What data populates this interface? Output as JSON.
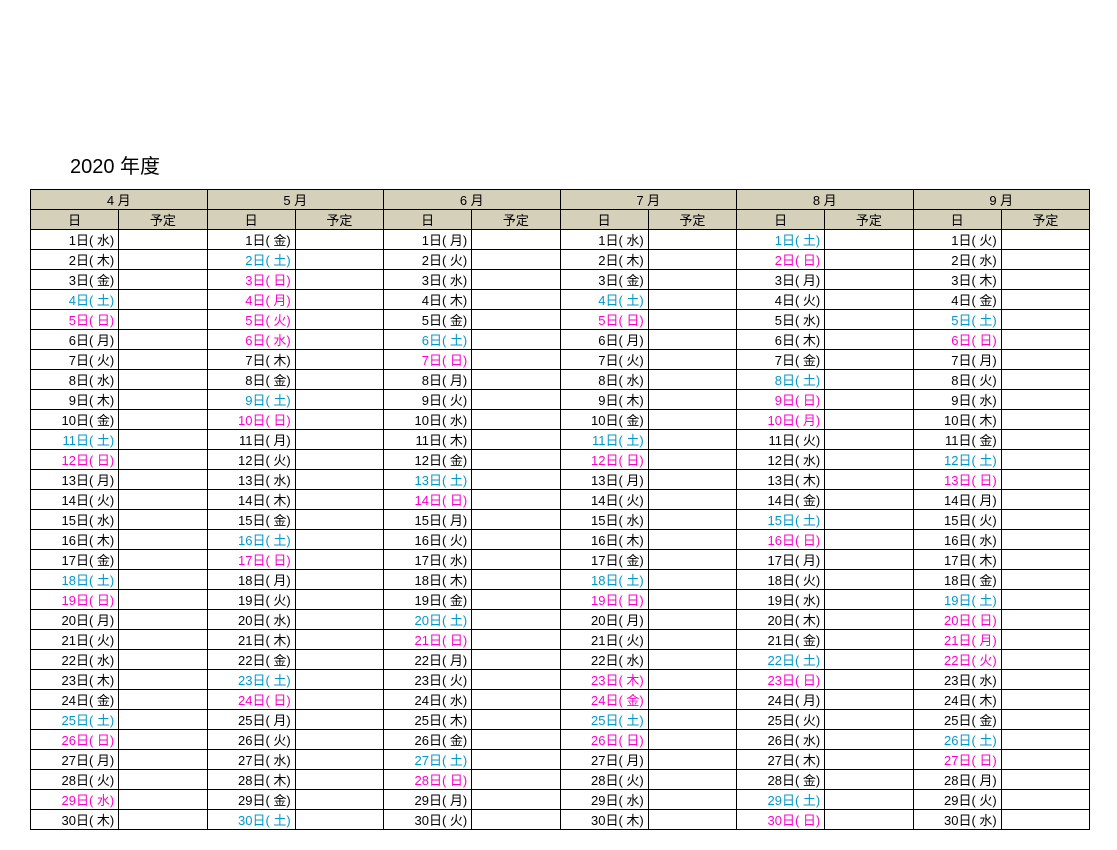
{
  "title": "2020  年度",
  "columns": {
    "date_label": "日",
    "schedule_label": "予定"
  },
  "colors": {
    "weekday": "#000000",
    "saturday": "#0099cc",
    "sunday_holiday": "#ff00cc",
    "header_bg": "#d4d0b9"
  },
  "months": [
    {
      "label": "4 月",
      "days": [
        {
          "d": 1,
          "wd": "水",
          "t": "b"
        },
        {
          "d": 2,
          "wd": "木",
          "t": "b"
        },
        {
          "d": 3,
          "wd": "金",
          "t": "b"
        },
        {
          "d": 4,
          "wd": "土",
          "t": "s"
        },
        {
          "d": 5,
          "wd": "日",
          "t": "h"
        },
        {
          "d": 6,
          "wd": "月",
          "t": "b"
        },
        {
          "d": 7,
          "wd": "火",
          "t": "b"
        },
        {
          "d": 8,
          "wd": "水",
          "t": "b"
        },
        {
          "d": 9,
          "wd": "木",
          "t": "b"
        },
        {
          "d": 10,
          "wd": "金",
          "t": "b"
        },
        {
          "d": 11,
          "wd": "土",
          "t": "s"
        },
        {
          "d": 12,
          "wd": "日",
          "t": "h"
        },
        {
          "d": 13,
          "wd": "月",
          "t": "b"
        },
        {
          "d": 14,
          "wd": "火",
          "t": "b"
        },
        {
          "d": 15,
          "wd": "水",
          "t": "b"
        },
        {
          "d": 16,
          "wd": "木",
          "t": "b"
        },
        {
          "d": 17,
          "wd": "金",
          "t": "b"
        },
        {
          "d": 18,
          "wd": "土",
          "t": "s"
        },
        {
          "d": 19,
          "wd": "日",
          "t": "h"
        },
        {
          "d": 20,
          "wd": "月",
          "t": "b"
        },
        {
          "d": 21,
          "wd": "火",
          "t": "b"
        },
        {
          "d": 22,
          "wd": "水",
          "t": "b"
        },
        {
          "d": 23,
          "wd": "木",
          "t": "b"
        },
        {
          "d": 24,
          "wd": "金",
          "t": "b"
        },
        {
          "d": 25,
          "wd": "土",
          "t": "s"
        },
        {
          "d": 26,
          "wd": "日",
          "t": "h"
        },
        {
          "d": 27,
          "wd": "月",
          "t": "b"
        },
        {
          "d": 28,
          "wd": "火",
          "t": "b"
        },
        {
          "d": 29,
          "wd": "水",
          "t": "h"
        },
        {
          "d": 30,
          "wd": "木",
          "t": "b"
        }
      ]
    },
    {
      "label": "5 月",
      "days": [
        {
          "d": 1,
          "wd": "金",
          "t": "b"
        },
        {
          "d": 2,
          "wd": "土",
          "t": "s"
        },
        {
          "d": 3,
          "wd": "日",
          "t": "h"
        },
        {
          "d": 4,
          "wd": "月",
          "t": "h"
        },
        {
          "d": 5,
          "wd": "火",
          "t": "h"
        },
        {
          "d": 6,
          "wd": "水",
          "t": "h"
        },
        {
          "d": 7,
          "wd": "木",
          "t": "b"
        },
        {
          "d": 8,
          "wd": "金",
          "t": "b"
        },
        {
          "d": 9,
          "wd": "土",
          "t": "s"
        },
        {
          "d": 10,
          "wd": "日",
          "t": "h"
        },
        {
          "d": 11,
          "wd": "月",
          "t": "b"
        },
        {
          "d": 12,
          "wd": "火",
          "t": "b"
        },
        {
          "d": 13,
          "wd": "水",
          "t": "b"
        },
        {
          "d": 14,
          "wd": "木",
          "t": "b"
        },
        {
          "d": 15,
          "wd": "金",
          "t": "b"
        },
        {
          "d": 16,
          "wd": "土",
          "t": "s"
        },
        {
          "d": 17,
          "wd": "日",
          "t": "h"
        },
        {
          "d": 18,
          "wd": "月",
          "t": "b"
        },
        {
          "d": 19,
          "wd": "火",
          "t": "b"
        },
        {
          "d": 20,
          "wd": "水",
          "t": "b"
        },
        {
          "d": 21,
          "wd": "木",
          "t": "b"
        },
        {
          "d": 22,
          "wd": "金",
          "t": "b"
        },
        {
          "d": 23,
          "wd": "土",
          "t": "s"
        },
        {
          "d": 24,
          "wd": "日",
          "t": "h"
        },
        {
          "d": 25,
          "wd": "月",
          "t": "b"
        },
        {
          "d": 26,
          "wd": "火",
          "t": "b"
        },
        {
          "d": 27,
          "wd": "水",
          "t": "b"
        },
        {
          "d": 28,
          "wd": "木",
          "t": "b"
        },
        {
          "d": 29,
          "wd": "金",
          "t": "b"
        },
        {
          "d": 30,
          "wd": "土",
          "t": "s"
        }
      ]
    },
    {
      "label": "6 月",
      "days": [
        {
          "d": 1,
          "wd": "月",
          "t": "b"
        },
        {
          "d": 2,
          "wd": "火",
          "t": "b"
        },
        {
          "d": 3,
          "wd": "水",
          "t": "b"
        },
        {
          "d": 4,
          "wd": "木",
          "t": "b"
        },
        {
          "d": 5,
          "wd": "金",
          "t": "b"
        },
        {
          "d": 6,
          "wd": "土",
          "t": "s"
        },
        {
          "d": 7,
          "wd": "日",
          "t": "h"
        },
        {
          "d": 8,
          "wd": "月",
          "t": "b"
        },
        {
          "d": 9,
          "wd": "火",
          "t": "b"
        },
        {
          "d": 10,
          "wd": "水",
          "t": "b"
        },
        {
          "d": 11,
          "wd": "木",
          "t": "b"
        },
        {
          "d": 12,
          "wd": "金",
          "t": "b"
        },
        {
          "d": 13,
          "wd": "土",
          "t": "s"
        },
        {
          "d": 14,
          "wd": "日",
          "t": "h"
        },
        {
          "d": 15,
          "wd": "月",
          "t": "b"
        },
        {
          "d": 16,
          "wd": "火",
          "t": "b"
        },
        {
          "d": 17,
          "wd": "水",
          "t": "b"
        },
        {
          "d": 18,
          "wd": "木",
          "t": "b"
        },
        {
          "d": 19,
          "wd": "金",
          "t": "b"
        },
        {
          "d": 20,
          "wd": "土",
          "t": "s"
        },
        {
          "d": 21,
          "wd": "日",
          "t": "h"
        },
        {
          "d": 22,
          "wd": "月",
          "t": "b"
        },
        {
          "d": 23,
          "wd": "火",
          "t": "b"
        },
        {
          "d": 24,
          "wd": "水",
          "t": "b"
        },
        {
          "d": 25,
          "wd": "木",
          "t": "b"
        },
        {
          "d": 26,
          "wd": "金",
          "t": "b"
        },
        {
          "d": 27,
          "wd": "土",
          "t": "s"
        },
        {
          "d": 28,
          "wd": "日",
          "t": "h"
        },
        {
          "d": 29,
          "wd": "月",
          "t": "b"
        },
        {
          "d": 30,
          "wd": "火",
          "t": "b"
        }
      ]
    },
    {
      "label": "7 月",
      "days": [
        {
          "d": 1,
          "wd": "水",
          "t": "b"
        },
        {
          "d": 2,
          "wd": "木",
          "t": "b"
        },
        {
          "d": 3,
          "wd": "金",
          "t": "b"
        },
        {
          "d": 4,
          "wd": "土",
          "t": "s"
        },
        {
          "d": 5,
          "wd": "日",
          "t": "h"
        },
        {
          "d": 6,
          "wd": "月",
          "t": "b"
        },
        {
          "d": 7,
          "wd": "火",
          "t": "b"
        },
        {
          "d": 8,
          "wd": "水",
          "t": "b"
        },
        {
          "d": 9,
          "wd": "木",
          "t": "b"
        },
        {
          "d": 10,
          "wd": "金",
          "t": "b"
        },
        {
          "d": 11,
          "wd": "土",
          "t": "s"
        },
        {
          "d": 12,
          "wd": "日",
          "t": "h"
        },
        {
          "d": 13,
          "wd": "月",
          "t": "b"
        },
        {
          "d": 14,
          "wd": "火",
          "t": "b"
        },
        {
          "d": 15,
          "wd": "水",
          "t": "b"
        },
        {
          "d": 16,
          "wd": "木",
          "t": "b"
        },
        {
          "d": 17,
          "wd": "金",
          "t": "b"
        },
        {
          "d": 18,
          "wd": "土",
          "t": "s"
        },
        {
          "d": 19,
          "wd": "日",
          "t": "h"
        },
        {
          "d": 20,
          "wd": "月",
          "t": "b"
        },
        {
          "d": 21,
          "wd": "火",
          "t": "b"
        },
        {
          "d": 22,
          "wd": "水",
          "t": "b"
        },
        {
          "d": 23,
          "wd": "木",
          "t": "h"
        },
        {
          "d": 24,
          "wd": "金",
          "t": "h"
        },
        {
          "d": 25,
          "wd": "土",
          "t": "s"
        },
        {
          "d": 26,
          "wd": "日",
          "t": "h"
        },
        {
          "d": 27,
          "wd": "月",
          "t": "b"
        },
        {
          "d": 28,
          "wd": "火",
          "t": "b"
        },
        {
          "d": 29,
          "wd": "水",
          "t": "b"
        },
        {
          "d": 30,
          "wd": "木",
          "t": "b"
        }
      ]
    },
    {
      "label": "8 月",
      "days": [
        {
          "d": 1,
          "wd": "土",
          "t": "s"
        },
        {
          "d": 2,
          "wd": "日",
          "t": "h"
        },
        {
          "d": 3,
          "wd": "月",
          "t": "b"
        },
        {
          "d": 4,
          "wd": "火",
          "t": "b"
        },
        {
          "d": 5,
          "wd": "水",
          "t": "b"
        },
        {
          "d": 6,
          "wd": "木",
          "t": "b"
        },
        {
          "d": 7,
          "wd": "金",
          "t": "b"
        },
        {
          "d": 8,
          "wd": "土",
          "t": "s"
        },
        {
          "d": 9,
          "wd": "日",
          "t": "h"
        },
        {
          "d": 10,
          "wd": "月",
          "t": "h"
        },
        {
          "d": 11,
          "wd": "火",
          "t": "b"
        },
        {
          "d": 12,
          "wd": "水",
          "t": "b"
        },
        {
          "d": 13,
          "wd": "木",
          "t": "b"
        },
        {
          "d": 14,
          "wd": "金",
          "t": "b"
        },
        {
          "d": 15,
          "wd": "土",
          "t": "s"
        },
        {
          "d": 16,
          "wd": "日",
          "t": "h"
        },
        {
          "d": 17,
          "wd": "月",
          "t": "b"
        },
        {
          "d": 18,
          "wd": "火",
          "t": "b"
        },
        {
          "d": 19,
          "wd": "水",
          "t": "b"
        },
        {
          "d": 20,
          "wd": "木",
          "t": "b"
        },
        {
          "d": 21,
          "wd": "金",
          "t": "b"
        },
        {
          "d": 22,
          "wd": "土",
          "t": "s"
        },
        {
          "d": 23,
          "wd": "日",
          "t": "h"
        },
        {
          "d": 24,
          "wd": "月",
          "t": "b"
        },
        {
          "d": 25,
          "wd": "火",
          "t": "b"
        },
        {
          "d": 26,
          "wd": "水",
          "t": "b"
        },
        {
          "d": 27,
          "wd": "木",
          "t": "b"
        },
        {
          "d": 28,
          "wd": "金",
          "t": "b"
        },
        {
          "d": 29,
          "wd": "土",
          "t": "s"
        },
        {
          "d": 30,
          "wd": "日",
          "t": "h"
        }
      ]
    },
    {
      "label": "9 月",
      "days": [
        {
          "d": 1,
          "wd": "火",
          "t": "b"
        },
        {
          "d": 2,
          "wd": "水",
          "t": "b"
        },
        {
          "d": 3,
          "wd": "木",
          "t": "b"
        },
        {
          "d": 4,
          "wd": "金",
          "t": "b"
        },
        {
          "d": 5,
          "wd": "土",
          "t": "s"
        },
        {
          "d": 6,
          "wd": "日",
          "t": "h"
        },
        {
          "d": 7,
          "wd": "月",
          "t": "b"
        },
        {
          "d": 8,
          "wd": "火",
          "t": "b"
        },
        {
          "d": 9,
          "wd": "水",
          "t": "b"
        },
        {
          "d": 10,
          "wd": "木",
          "t": "b"
        },
        {
          "d": 11,
          "wd": "金",
          "t": "b"
        },
        {
          "d": 12,
          "wd": "土",
          "t": "s"
        },
        {
          "d": 13,
          "wd": "日",
          "t": "h"
        },
        {
          "d": 14,
          "wd": "月",
          "t": "b"
        },
        {
          "d": 15,
          "wd": "火",
          "t": "b"
        },
        {
          "d": 16,
          "wd": "水",
          "t": "b"
        },
        {
          "d": 17,
          "wd": "木",
          "t": "b"
        },
        {
          "d": 18,
          "wd": "金",
          "t": "b"
        },
        {
          "d": 19,
          "wd": "土",
          "t": "s"
        },
        {
          "d": 20,
          "wd": "日",
          "t": "h"
        },
        {
          "d": 21,
          "wd": "月",
          "t": "h"
        },
        {
          "d": 22,
          "wd": "火",
          "t": "h"
        },
        {
          "d": 23,
          "wd": "水",
          "t": "b"
        },
        {
          "d": 24,
          "wd": "木",
          "t": "b"
        },
        {
          "d": 25,
          "wd": "金",
          "t": "b"
        },
        {
          "d": 26,
          "wd": "土",
          "t": "s"
        },
        {
          "d": 27,
          "wd": "日",
          "t": "h"
        },
        {
          "d": 28,
          "wd": "月",
          "t": "b"
        },
        {
          "d": 29,
          "wd": "火",
          "t": "b"
        },
        {
          "d": 30,
          "wd": "水",
          "t": "b"
        }
      ]
    }
  ]
}
